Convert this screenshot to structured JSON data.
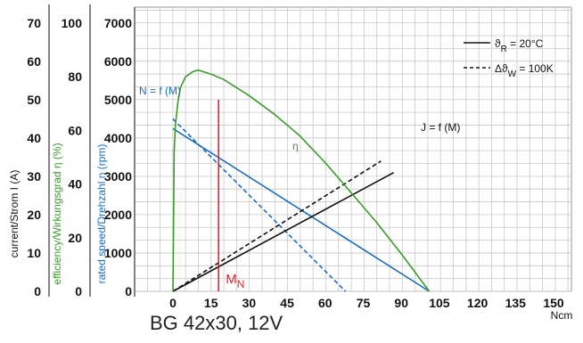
{
  "caption": "BG 42x30, 12V",
  "chart_data": {
    "type": "line",
    "x_unit_label": "Ncm",
    "x_ticks": [
      "0",
      "15",
      "30",
      "45",
      "60",
      "75",
      "90",
      "105",
      "120",
      "135",
      "150"
    ],
    "xlim": [
      0,
      150
    ],
    "axes": {
      "current": {
        "label": "current/Strom I (A)",
        "ticks": [
          "0",
          "10",
          "20",
          "30",
          "40",
          "50",
          "60",
          "70"
        ],
        "ylim": [
          0,
          70
        ],
        "color": "#111111"
      },
      "efficiency": {
        "label": "efficiency/Wirkungsgrad η (%)",
        "ticks": [
          "0",
          "20",
          "40",
          "60",
          "80",
          "100"
        ],
        "ylim": [
          0,
          100
        ],
        "color": "#3a9a2a"
      },
      "speed": {
        "label": "rated speed/Drehzahl n (rpm)",
        "ticks": [
          "0",
          "1000",
          "2000",
          "3000",
          "4000",
          "5000",
          "6000",
          "7000"
        ],
        "ylim": [
          0,
          7000
        ],
        "color": "#1a6fb8"
      }
    },
    "series": [
      {
        "label": "N = f (M)",
        "axis": "speed",
        "color": "#1a6fb8",
        "dash": "solid",
        "x": [
          0,
          101
        ],
        "y": [
          4250,
          0
        ]
      },
      {
        "axis": "speed",
        "color": "#1a6fb8",
        "dash": "dashed",
        "x": [
          0,
          68
        ],
        "y": [
          4500,
          0
        ]
      },
      {
        "label": "J = f (M)",
        "axis": "current",
        "color": "#111111",
        "dash": "solid",
        "x": [
          0,
          87
        ],
        "y": [
          0,
          31
        ]
      },
      {
        "axis": "current",
        "color": "#111111",
        "dash": "dashed",
        "x": [
          0,
          82
        ],
        "y": [
          0,
          34
        ]
      },
      {
        "label": "η",
        "axis": "efficiency",
        "color": "#3a9a2a",
        "dash": "solid",
        "x": [
          0,
          0.5,
          1,
          2,
          3,
          5,
          8,
          10,
          15,
          20,
          30,
          40,
          50,
          60,
          70,
          80,
          90,
          101
        ],
        "y": [
          0,
          52,
          62,
          71,
          76,
          80,
          82,
          82.5,
          81,
          79,
          73,
          66,
          58,
          48,
          37,
          26,
          14,
          0
        ]
      }
    ],
    "marker": {
      "label": "M",
      "subscript": "N",
      "x": 18,
      "color": "#e0202a"
    },
    "legend": [
      {
        "symbol": "ϑ",
        "subscript": "R",
        "value": " = 20°C",
        "dash": "solid"
      },
      {
        "symbol": "Δϑ",
        "subscript": "W",
        "value": " = 100K",
        "dash": "dashed"
      }
    ],
    "grid": true
  }
}
